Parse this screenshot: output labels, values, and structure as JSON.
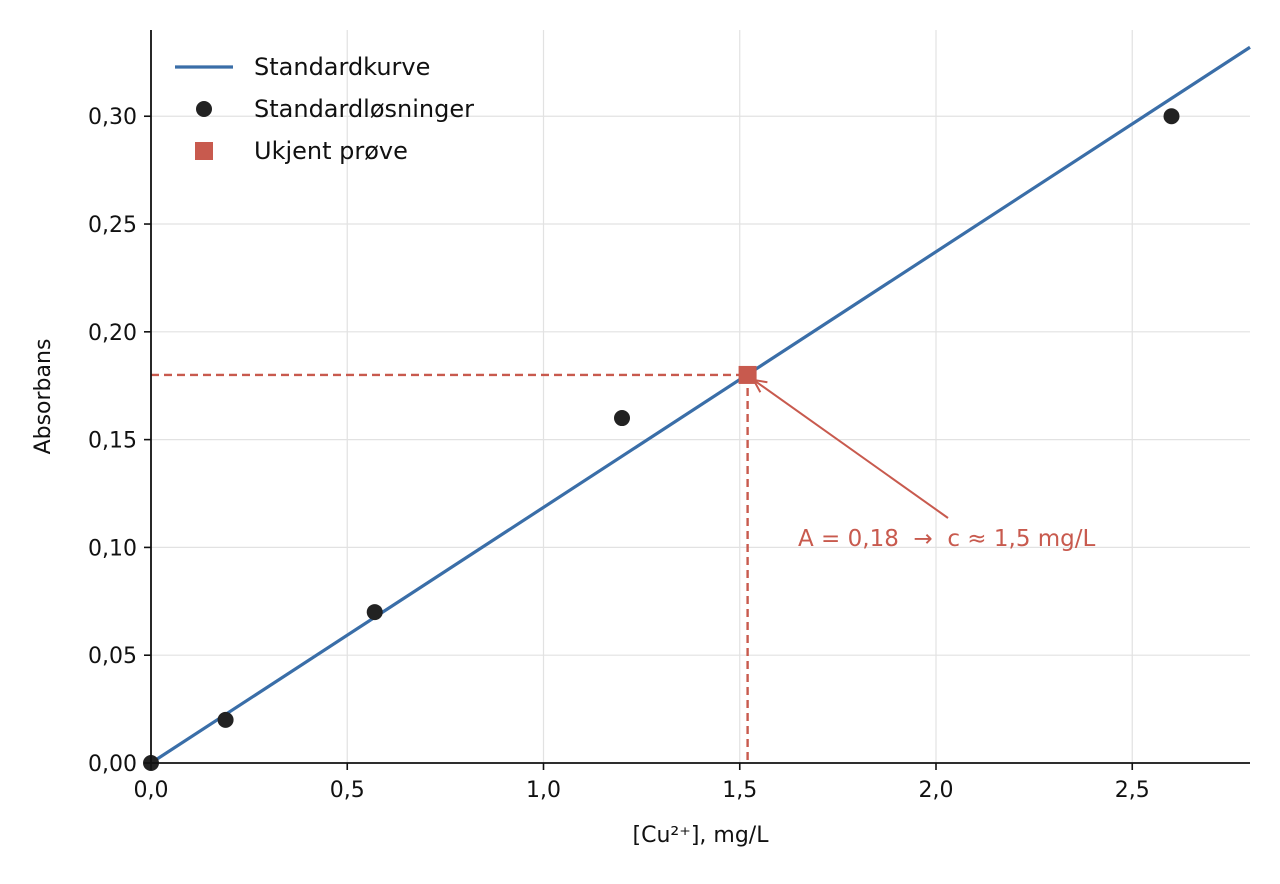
{
  "chart_data": {
    "type": "line",
    "title": "",
    "xlabel": "[Cu²⁺], mg/L",
    "ylabel": "Absorbans",
    "xlim": [
      0,
      2.8
    ],
    "ylim": [
      0,
      0.34
    ],
    "x_ticks": [
      0.0,
      0.5,
      1.0,
      1.5,
      2.0,
      2.5
    ],
    "x_tick_labels": [
      "0,0",
      "0,5",
      "1,0",
      "1,5",
      "2,0",
      "2,5"
    ],
    "y_ticks": [
      0.0,
      0.05,
      0.1,
      0.15,
      0.2,
      0.25,
      0.3
    ],
    "y_tick_labels": [
      "0,00",
      "0,05",
      "0,10",
      "0,15",
      "0,20",
      "0,25",
      "0,30"
    ],
    "grid": true,
    "legend_position": "top-left",
    "series": [
      {
        "name": "Standardkurve",
        "kind": "line",
        "color": "#3a6ea8",
        "x": [
          0.0,
          2.8
        ],
        "y": [
          0.0,
          0.332
        ]
      },
      {
        "name": "Standardløsninger",
        "kind": "scatter",
        "marker": "circle",
        "color": "#222222",
        "x": [
          0.0,
          0.19,
          0.57,
          1.2,
          2.6
        ],
        "y": [
          0.0,
          0.02,
          0.07,
          0.16,
          0.3
        ]
      },
      {
        "name": "Ukjent prøve",
        "kind": "scatter",
        "marker": "square",
        "color": "#c85a4e",
        "x": [
          1.52
        ],
        "y": [
          0.18
        ]
      }
    ],
    "guide_lines": {
      "color": "#c85a4e",
      "style": "dashed",
      "x": 1.52,
      "y": 0.18
    },
    "annotation": {
      "text": "A = 0,18  →  c ≈ 1,5 mg/L",
      "color": "#c85a4e",
      "points_to": {
        "x": 1.52,
        "y": 0.18
      },
      "anchor": {
        "x": 1.64,
        "y": 0.105
      }
    }
  }
}
